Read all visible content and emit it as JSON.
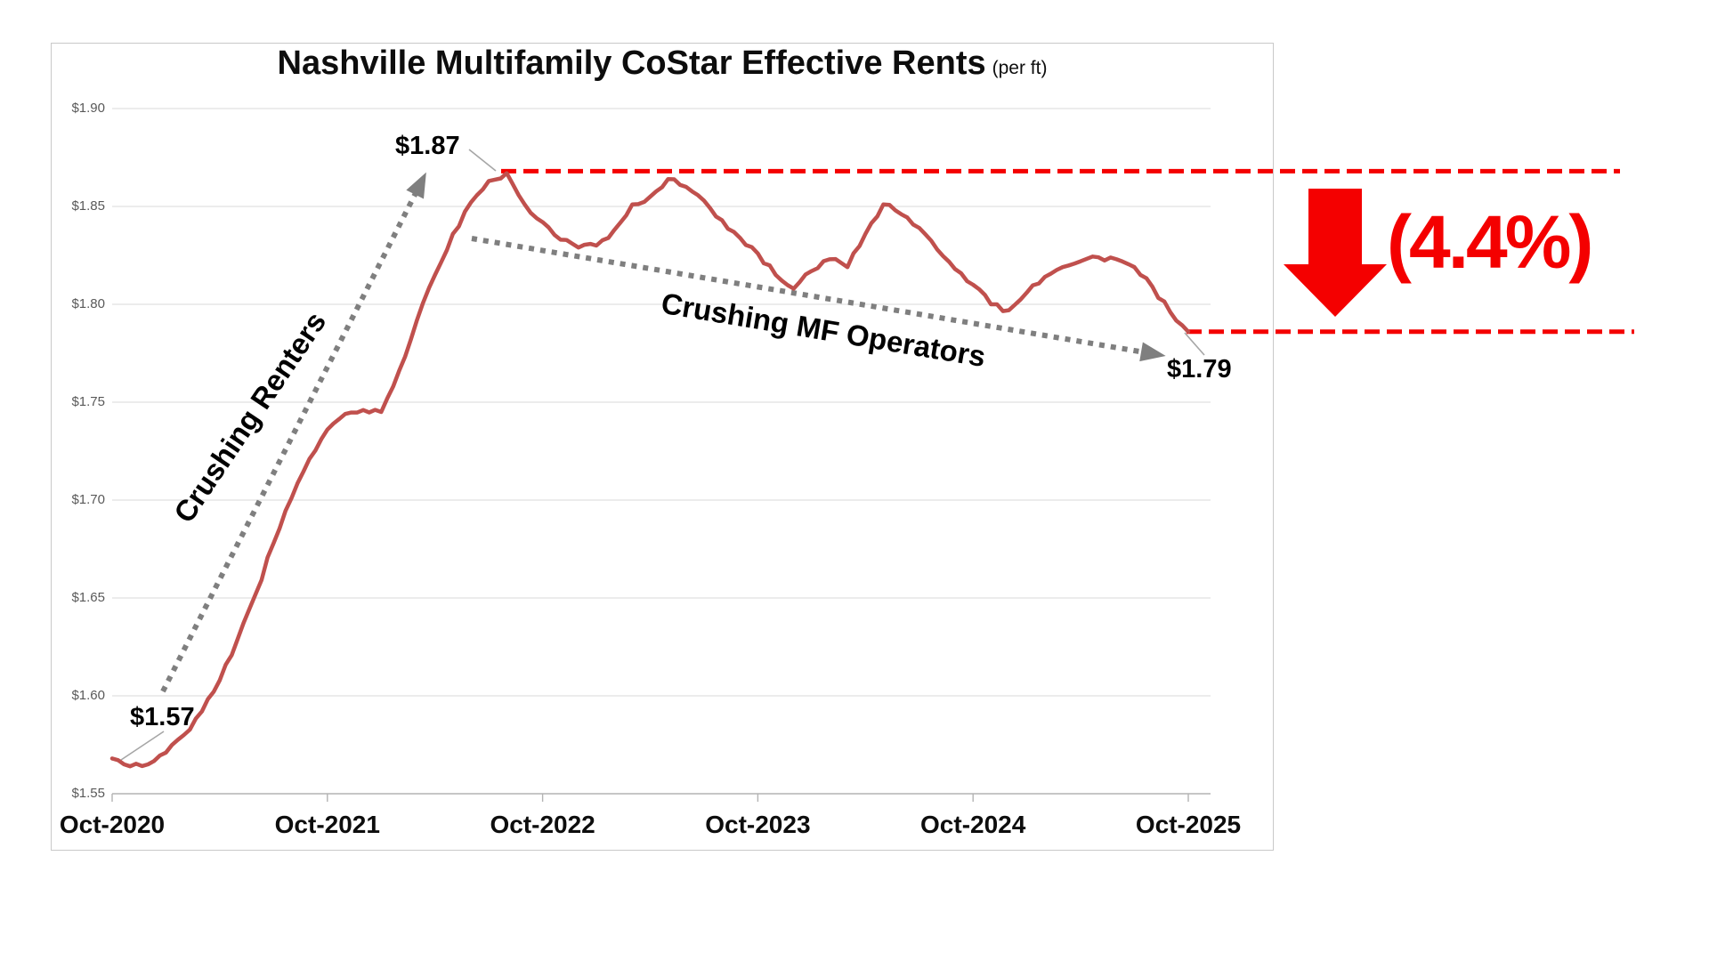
{
  "page": {
    "background": "#ffffff"
  },
  "chart_data": {
    "type": "line",
    "title": "Nashville Multifamily CoStar Effective Rents",
    "title_suffix": "(per ft)",
    "x_tick_labels": [
      "Oct-2020",
      "Oct-2021",
      "Oct-2022",
      "Oct-2023",
      "Oct-2024",
      "Oct-2025"
    ],
    "y_tick_labels": [
      "$1.90",
      "$1.85",
      "$1.80",
      "$1.75",
      "$1.70",
      "$1.65",
      "$1.60",
      "$1.55"
    ],
    "y_tick_values": [
      1.9,
      1.85,
      1.8,
      1.75,
      1.7,
      1.65,
      1.6,
      1.55
    ],
    "ylim": [
      1.55,
      1.9
    ],
    "grid": "horizontal",
    "legend": "none",
    "x_unit": "month",
    "start_month": "Oct-2020",
    "end_month": "Oct-2025",
    "series": [
      {
        "name": "Effective rent ($ per sq ft)",
        "color": "#C0504D",
        "frequency": "monthly",
        "values": [
          1.568,
          1.564,
          1.565,
          1.571,
          1.58,
          1.592,
          1.608,
          1.629,
          1.652,
          1.678,
          1.701,
          1.721,
          1.736,
          1.744,
          1.746,
          1.745,
          1.766,
          1.792,
          1.815,
          1.836,
          1.852,
          1.863,
          1.867,
          1.851,
          1.842,
          1.833,
          1.829,
          1.83,
          1.838,
          1.851,
          1.855,
          1.864,
          1.86,
          1.853,
          1.843,
          1.834,
          1.826,
          1.815,
          1.808,
          1.817,
          1.823,
          1.819,
          1.836,
          1.851,
          1.846,
          1.839,
          1.828,
          1.818,
          1.81,
          1.8,
          1.797,
          1.806,
          1.814,
          1.819,
          1.822,
          1.824,
          1.823,
          1.819,
          1.809,
          1.796,
          1.786
        ]
      }
    ],
    "annotations": {
      "start_value_label": "$1.57",
      "peak_value_label": "$1.87",
      "end_value_label": "$1.79",
      "decline_pct_label": "(4.4%)",
      "rise_arrow_text": "Crushing Renters",
      "decline_arrow_text": "Crushing MF Operators",
      "peak_reference_value": 1.868,
      "end_reference_value": 1.786,
      "accent_red": "#F40000",
      "annotation_gray": "#7F7F7F"
    }
  }
}
